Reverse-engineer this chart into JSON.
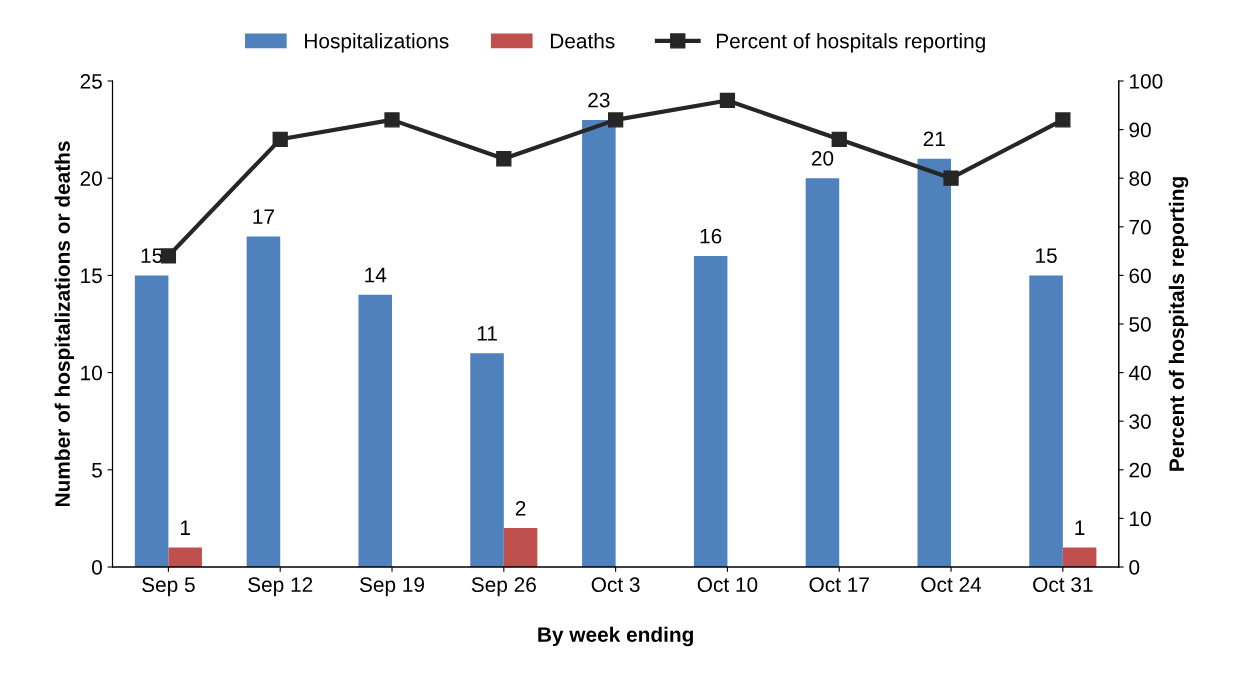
{
  "chart_data": {
    "type": "bar",
    "xlabel": "By week ending",
    "ylabel": "Number of hospitalizations or deaths",
    "y2label": "Percent of hospitals reporting",
    "categories": [
      "Sep 5",
      "Sep 12",
      "Sep 19",
      "Sep 26",
      "Oct 3",
      "Oct 10",
      "Oct 17",
      "Oct 24",
      "Oct 31"
    ],
    "series": [
      {
        "name": "Hospitalizations",
        "color": "#4f81bd",
        "values": [
          15,
          17,
          14,
          11,
          23,
          16,
          20,
          21,
          15
        ],
        "value_labels": [
          "15",
          "17",
          "14",
          "11",
          "23",
          "16",
          "20",
          "21",
          "15"
        ]
      },
      {
        "name": "Deaths",
        "color": "#c0504d",
        "values": [
          1,
          0,
          0,
          2,
          0,
          0,
          0,
          0,
          1
        ],
        "value_labels": [
          "1",
          null,
          null,
          "2",
          null,
          null,
          null,
          null,
          "1"
        ]
      },
      {
        "name": "Percent of hospitals reporting",
        "type": "line",
        "axis": "y2",
        "color": "#262626",
        "marker": "square",
        "values": [
          64,
          88,
          92,
          84,
          92,
          96,
          88,
          80,
          92
        ]
      }
    ],
    "ylim": [
      0,
      25
    ],
    "yticks": [
      0,
      5,
      10,
      15,
      20,
      25
    ],
    "y2lim": [
      0,
      100
    ],
    "y2ticks": [
      0,
      10,
      20,
      30,
      40,
      50,
      60,
      70,
      80,
      90,
      100
    ],
    "legend": "top",
    "grid": false
  }
}
